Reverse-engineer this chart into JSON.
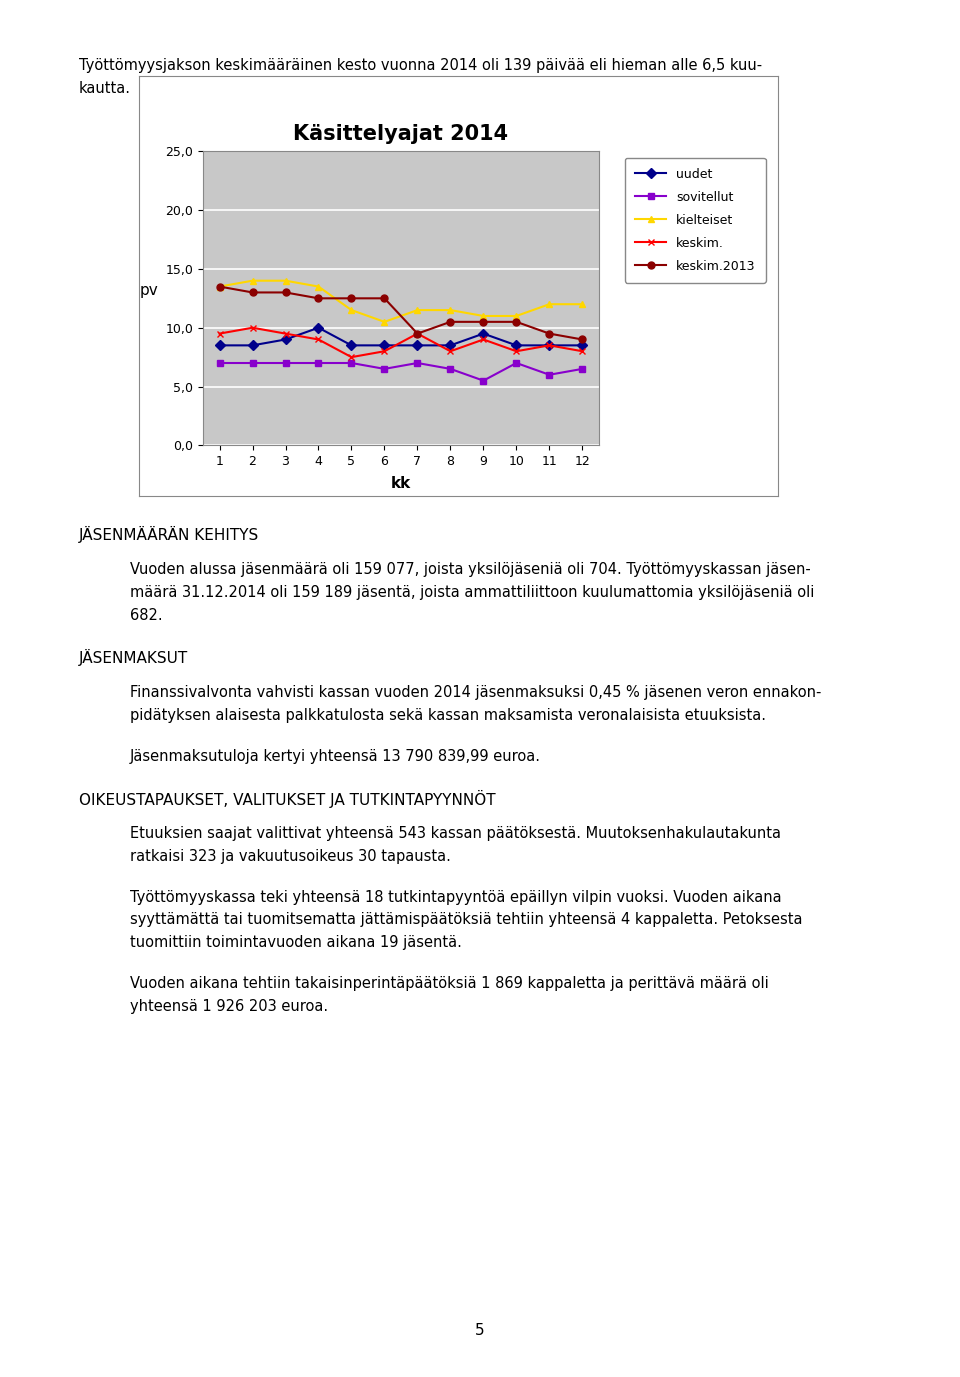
{
  "title": "Käsittelyajat 2014",
  "xlabel": "kk",
  "ylabel": "pv",
  "ylim": [
    0,
    25
  ],
  "yticks": [
    0.0,
    5.0,
    10.0,
    15.0,
    20.0,
    25.0
  ],
  "xticks": [
    1,
    2,
    3,
    4,
    5,
    6,
    7,
    8,
    9,
    10,
    11,
    12
  ],
  "series": {
    "uudet": [
      8.5,
      8.5,
      9.0,
      10.0,
      8.5,
      8.5,
      8.5,
      8.5,
      9.5,
      8.5,
      8.5,
      8.5
    ],
    "sovitellut": [
      7.0,
      7.0,
      7.0,
      7.0,
      7.0,
      6.5,
      7.0,
      6.5,
      5.5,
      7.0,
      6.0,
      6.5
    ],
    "kielteiset": [
      13.5,
      14.0,
      14.0,
      13.5,
      11.5,
      10.5,
      11.5,
      11.5,
      11.0,
      11.0,
      12.0,
      12.0
    ],
    "keskim": [
      9.5,
      10.0,
      9.5,
      9.0,
      7.5,
      8.0,
      9.5,
      8.0,
      9.0,
      8.0,
      8.5,
      8.0
    ],
    "keskim2013": [
      13.5,
      13.0,
      13.0,
      12.5,
      12.5,
      12.5,
      9.5,
      10.5,
      10.5,
      10.5,
      9.5,
      9.0
    ]
  },
  "colors": {
    "uudet": "#00008B",
    "sovitellut": "#8800CC",
    "kielteiset": "#FFD700",
    "keskim": "#FF0000",
    "keskim2013": "#8B0000"
  },
  "markers": {
    "uudet": "D",
    "sovitellut": "s",
    "kielteiset": "^",
    "keskim": "x",
    "keskim2013": "o"
  },
  "legend_labels": [
    "uudet",
    "sovitellut",
    "kielteiset",
    "keskim.",
    "keskim.2013"
  ],
  "chart_bg": "#C8C8C8",
  "page_bg": "#FFFFFF",
  "top_text_line1": "Työttömyysjakson keskimääräinen kesto vuonna 2014 oli 139 päivää eli hieman alle 6,5 kuu-",
  "top_text_line2": "kautta.",
  "section1_header": "JÄSENMÄÄRÄN KEHITYS",
  "section1_body_lines": [
    "Vuoden alussa jäsenmäärä oli 159 077, joista yksilöjäseniä oli 704. Työttömyyskassan jäsen-",
    "määrä 31.12.2014 oli 159 189 jäsentä, joista ammattiliittoon kuulumattomia yksilöjäseniä oli",
    "682."
  ],
  "section2_header": "JÄSENMAKSUT",
  "section2_body1_lines": [
    "Finanssivalvonta vahvisti kassan vuoden 2014 jäsenmaksuksi 0,45 % jäsenen veron ennakon-",
    "pidätyksen alaisesta palkkatulosta sekä kassan maksamista veronalaisista etuuksista."
  ],
  "section2_body2": "Jäsenmaksutuloja kertyi yhteensä 13 790 839,99 euroa.",
  "section3_header": "OIKEUSTAPAUKSET, VALITUKSET JA TUTKINTAPYYNNÖT",
  "section3_body1_lines": [
    "Etuuksien saajat valittivat yhteensä 543 kassan päätöksestä. Muutoksenhakulautakunta",
    "ratkaisi 323 ja vakuutusoikeus 30 tapausta."
  ],
  "section3_body2_lines": [
    "Työttömyyskassa teki yhteensä 18 tutkintapyyntöä epäillyn vilpin vuoksi. Vuoden aikana",
    "syyttämättä tai tuomitsematta jättämisPäätöksiä tehtiin yhteensä 4 kappaletta. Petoksesta",
    "tuomittiin toimintavuoden aikana 19 jäsentä."
  ],
  "section3_body3_lines": [
    "Vuoden aikana tehtiin takaisinperintäpäätöksiä 1 869 kappaletta ja perittavä määrä oli",
    "yhteensä 1 926 203 euroa."
  ],
  "page_number": "5"
}
